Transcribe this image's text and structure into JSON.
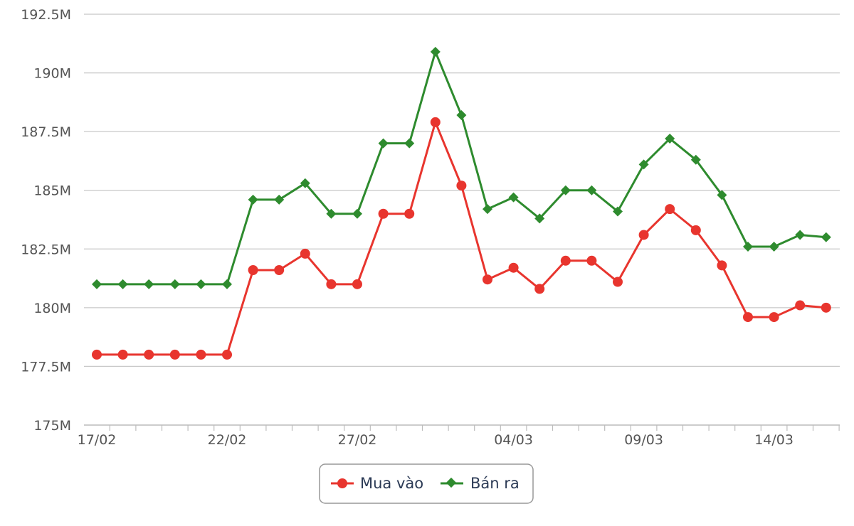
{
  "chart_data": {
    "type": "line",
    "x": [
      "17/02",
      "18/02",
      "19/02",
      "20/02",
      "21/02",
      "22/02",
      "23/02",
      "24/02",
      "25/02",
      "26/02",
      "27/02",
      "28/02",
      "29/02",
      "01/03",
      "02/03",
      "03/03",
      "04/03",
      "05/03",
      "06/03",
      "07/03",
      "08/03",
      "09/03",
      "10/03",
      "11/03",
      "12/03",
      "13/03",
      "14/03",
      "15/03",
      "16/03"
    ],
    "x_ticks": [
      "17/02",
      "22/02",
      "27/02",
      "04/03",
      "09/03",
      "14/03"
    ],
    "y_ticks": [
      "175M",
      "177.5M",
      "180M",
      "182.5M",
      "185M",
      "187.5M",
      "190M",
      "192.5M"
    ],
    "ylim": [
      175,
      192.5
    ],
    "y_unit": "M",
    "grid": "horizontal",
    "legend": "bottom-center",
    "series": [
      {
        "name": "Mua vào",
        "color": "#e8352e",
        "marker": "circle",
        "values": [
          178,
          178,
          178,
          178,
          178,
          178,
          181.6,
          181.6,
          182.3,
          181,
          181,
          184,
          184,
          187.9,
          185.2,
          181.2,
          181.7,
          180.8,
          182,
          182,
          181.1,
          183.1,
          184.2,
          183.3,
          181.8,
          179.6,
          179.6,
          180.1,
          180
        ]
      },
      {
        "name": "Bán ra",
        "color": "#2e8b2e",
        "marker": "diamond",
        "values": [
          181,
          181,
          181,
          181,
          181,
          181,
          184.6,
          184.6,
          185.3,
          184,
          184,
          187,
          187,
          190.9,
          188.2,
          184.2,
          184.7,
          183.8,
          185,
          185,
          184.1,
          186.1,
          187.2,
          186.3,
          184.8,
          182.6,
          182.6,
          183.1,
          183
        ]
      }
    ]
  }
}
